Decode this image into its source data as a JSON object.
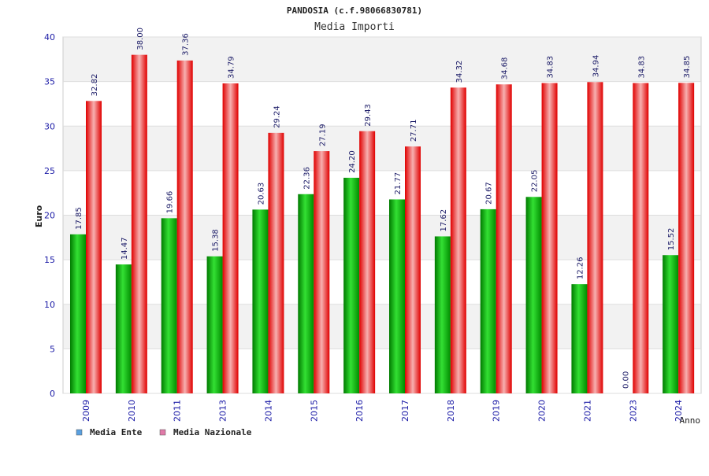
{
  "chart_data": {
    "type": "bar",
    "title": "PANDOSIA (c.f.98066830781)",
    "subtitle": "Media Importi",
    "xlabel": "Anno",
    "ylabel": "Euro",
    "ylim": [
      0,
      40
    ],
    "yticks": [
      0,
      5,
      10,
      15,
      20,
      25,
      30,
      35,
      40
    ],
    "categories": [
      "2009",
      "2010",
      "2011",
      "2013",
      "2014",
      "2015",
      "2016",
      "2017",
      "2018",
      "2019",
      "2020",
      "2021",
      "2023",
      "2024"
    ],
    "series": [
      {
        "name": "Media Ente",
        "color": "#00b800",
        "values": [
          17.85,
          14.47,
          19.66,
          15.38,
          20.63,
          22.36,
          24.2,
          21.77,
          17.62,
          20.67,
          22.05,
          12.26,
          0.0,
          15.52
        ],
        "labels": [
          "17.85",
          "14.47",
          "19.66",
          "15.38",
          "20.63",
          "22.36",
          "24.20",
          "21.77",
          "17.62",
          "20.67",
          "22.05",
          "12.26",
          "0.00",
          "15.52"
        ]
      },
      {
        "name": "Media Nazionale",
        "color": "#ee1111",
        "values": [
          32.82,
          38.0,
          37.36,
          34.79,
          29.24,
          27.19,
          29.43,
          27.71,
          34.32,
          34.68,
          34.83,
          34.94,
          34.83,
          34.85
        ],
        "labels": [
          "32.82",
          "38.00",
          "37.36",
          "34.79",
          "29.24",
          "27.19",
          "29.43",
          "27.71",
          "34.32",
          "34.68",
          "34.83",
          "34.94",
          "34.83",
          "34.85"
        ]
      }
    ],
    "legend": [
      {
        "label": "Media Ente",
        "color": "#5aa0e0"
      },
      {
        "label": "Media Nazionale",
        "color": "#e07aa8"
      }
    ],
    "legend_position": "bottom-left",
    "grid": true
  }
}
